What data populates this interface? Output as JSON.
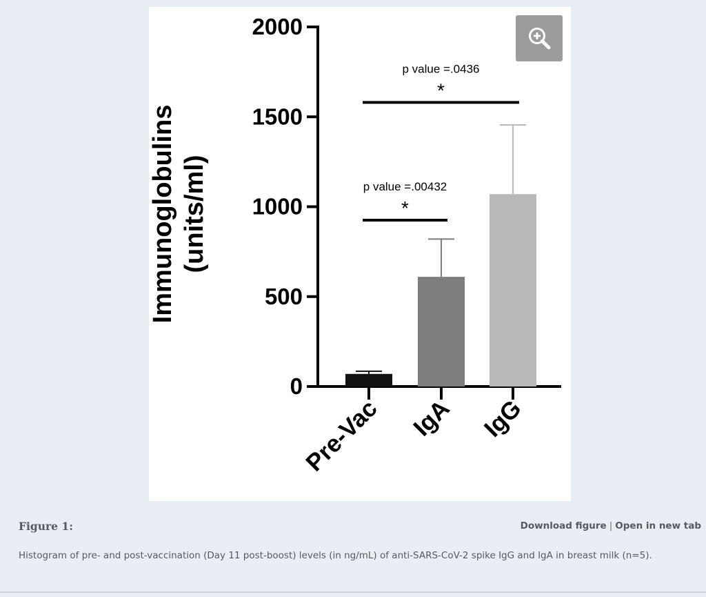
{
  "figure": {
    "label": "Figure 1:",
    "download_label": "Download figure",
    "separator": "|",
    "open_label": "Open in new tab",
    "caption": "Histogram of pre- and post-vaccination (Day 11 post-boost) levels (in ng/mL) of anti-SARS-CoV-2 spike IgG and IgA in breast milk (n=5).",
    "zoom_icon": "zoom-in-icon"
  },
  "colors": {
    "page_background": "#e9eef4",
    "panel_background": "#ffffff",
    "zoom_button": "#9c9c9c",
    "text": "#555a60"
  },
  "chart_data": {
    "type": "bar",
    "title": "",
    "xlabel": "",
    "ylabel": "Immunoglobulins (units/ml)",
    "ylabel_lines": [
      "Immunoglobulins",
      "(units/ml)"
    ],
    "categories": [
      "Pre-Vac",
      "IgA",
      "IgG"
    ],
    "values": [
      70,
      610,
      1070
    ],
    "error_upper": [
      85,
      820,
      1455
    ],
    "bar_colors": [
      "#111111",
      "#7d7d7d",
      "#b9b9b9"
    ],
    "ylim": [
      0,
      2000
    ],
    "yticks": [
      0,
      500,
      1000,
      1500,
      2000
    ],
    "ytick_labels": [
      "0",
      "500",
      "1000",
      "1500",
      "2000"
    ],
    "grid": false,
    "legend": "none",
    "annotations": [
      {
        "text": "p value =.00432",
        "star": "*",
        "from": "Pre-Vac",
        "to": "IgA",
        "y": 925
      },
      {
        "text": "p value =.0436",
        "star": "*",
        "from": "Pre-Vac",
        "to": "IgG",
        "y": 1580
      }
    ]
  }
}
